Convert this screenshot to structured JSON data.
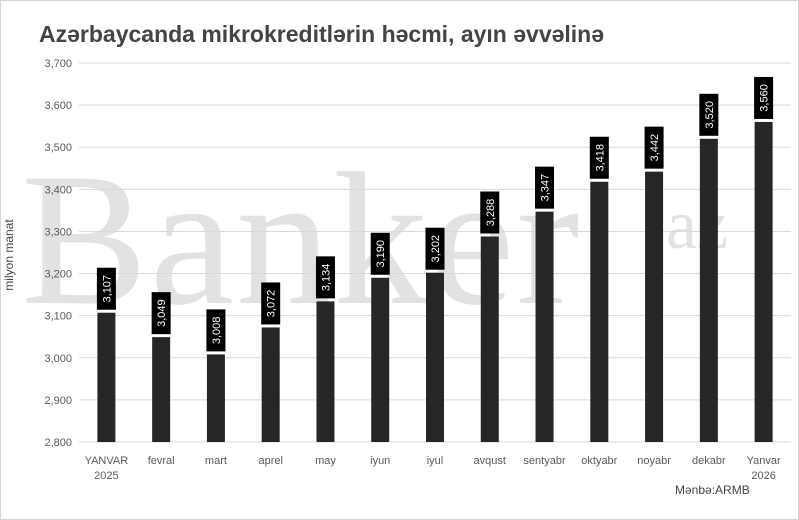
{
  "colors": {
    "bar": "#262626",
    "grid": "#d9d9d9",
    "axis_text": "#595959",
    "label_bg": "#000000",
    "label_text": "#ffffff",
    "watermark": "#e2e2e2"
  },
  "watermark": {
    "main": "Banker",
    "sup": "az"
  },
  "chart_data": {
    "type": "bar",
    "title": "Azərbaycanda mikrokreditlərin həcmi, ayın əvvəlinə",
    "ylabel": "milyon manat",
    "xlabel": "",
    "source": "Mənbə:ARMB",
    "ylim": [
      2800,
      3700
    ],
    "ytick_step": 100,
    "yticks": [
      "2,800",
      "2,900",
      "3,000",
      "3,100",
      "3,200",
      "3,300",
      "3,400",
      "3,500",
      "3,600",
      "3,700"
    ],
    "grid": true,
    "legend": false,
    "categories": [
      [
        "YANVAR",
        "2025"
      ],
      [
        "fevral"
      ],
      [
        "mart"
      ],
      [
        "aprel"
      ],
      [
        "may"
      ],
      [
        "iyun"
      ],
      [
        "iyul"
      ],
      [
        "avqust"
      ],
      [
        "sentyabr"
      ],
      [
        "oktyabr"
      ],
      [
        "noyabr"
      ],
      [
        "dekabr"
      ],
      [
        "Yanvar",
        "2026"
      ]
    ],
    "values": [
      3107,
      3049,
      3008,
      3072,
      3134,
      3190,
      3202,
      3288,
      3347,
      3418,
      3442,
      3520,
      3560
    ],
    "data_labels": [
      "3,107",
      "3,049",
      "3,008",
      "3,072",
      "3,134",
      "3,190",
      "3,202",
      "3,288",
      "3,347",
      "3,418",
      "3,442",
      "3,520",
      "3,560"
    ]
  }
}
